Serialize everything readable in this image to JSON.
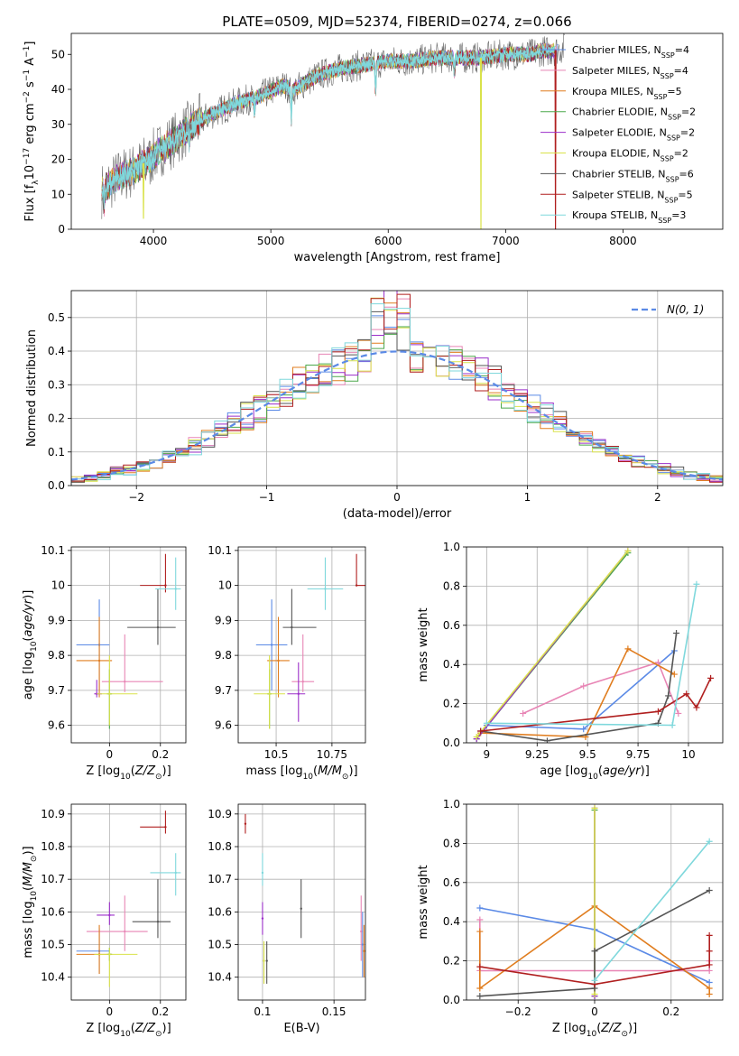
{
  "title": "PLATE=0509, MJD=52374, FIBERID=0274, z=0.066",
  "colors": {
    "chabrier_miles": "#5b8ae6",
    "salpeter_miles": "#e885b5",
    "kroupa_miles": "#e07d1f",
    "chabrier_elodie": "#4ca84c",
    "salpeter_elodie": "#9b2fc9",
    "kroupa_elodie": "#d9e24a",
    "chabrier_stelib": "#555555",
    "salpeter_stelib": "#b01f1f",
    "kroupa_stelib": "#7fd8dc",
    "spectrum": "#666666",
    "gaussian": "#5b8ae6"
  },
  "chart_data": [
    {
      "id": "spectrum",
      "type": "line",
      "xlabel": "wavelength [Angstrom, rest frame]",
      "ylabel": "Flux [f_λ 10^-17 erg cm^-2 s^-1 A^-1]",
      "xlim": [
        3300,
        8850
      ],
      "ylim": [
        0,
        56
      ],
      "xticks": [
        4000,
        5000,
        6000,
        7000,
        8000
      ],
      "yticks": [
        0,
        10,
        20,
        30,
        40,
        50
      ],
      "grid": false,
      "legend_position": "right",
      "legend": [
        {
          "label": "Chabrier MILES, N",
          "sub": "SSP",
          "eq": "=4",
          "color_key": "chabrier_miles"
        },
        {
          "label": "Salpeter MILES, N",
          "sub": "SSP",
          "eq": "=4",
          "color_key": "salpeter_miles"
        },
        {
          "label": "Kroupa MILES, N",
          "sub": "SSP",
          "eq": "=5",
          "color_key": "kroupa_miles"
        },
        {
          "label": "Chabrier ELODIE, N",
          "sub": "SSP",
          "eq": "=2",
          "color_key": "chabrier_elodie"
        },
        {
          "label": "Salpeter ELODIE, N",
          "sub": "SSP",
          "eq": "=2",
          "color_key": "salpeter_elodie"
        },
        {
          "label": "Kroupa ELODIE, N",
          "sub": "SSP",
          "eq": "=2",
          "color_key": "kroupa_elodie"
        },
        {
          "label": "Chabrier STELIB, N",
          "sub": "SSP",
          "eq": "=6",
          "color_key": "chabrier_stelib"
        },
        {
          "label": "Salpeter STELIB, N",
          "sub": "SSP",
          "eq": "=5",
          "color_key": "salpeter_stelib"
        },
        {
          "label": "Kroupa STELIB, N",
          "sub": "SSP",
          "eq": "=3",
          "color_key": "kroupa_stelib"
        }
      ],
      "continuum_x": [
        3560,
        3700,
        3850,
        3920,
        4000,
        4100,
        4200,
        4300,
        4400,
        4500,
        4700,
        4900,
        5100,
        5200,
        5400,
        5600,
        5800,
        6000,
        6200,
        6400,
        6600,
        6800,
        7000,
        7200,
        7300,
        7400,
        7500
      ],
      "continuum_y": [
        11,
        15,
        17,
        19,
        21,
        24,
        26,
        29,
        31,
        33,
        36,
        38,
        41,
        40,
        44,
        46,
        47,
        48,
        48,
        49,
        49,
        49,
        50,
        50,
        51,
        51,
        52
      ],
      "features": [
        {
          "x": 3580,
          "y": 7
        },
        {
          "x": 3934,
          "y": 18
        },
        {
          "x": 3968,
          "y": 19
        },
        {
          "x": 4101,
          "y": 22
        },
        {
          "x": 4304,
          "y": 25
        },
        {
          "x": 4861,
          "y": 33
        },
        {
          "x": 5175,
          "y": 32
        },
        {
          "x": 5893,
          "y": 39
        },
        {
          "x": 6563,
          "y": 45
        }
      ],
      "spikes": [
        {
          "x": 3915,
          "y": 3,
          "color_key": "kroupa_elodie"
        },
        {
          "x": 6790,
          "y": 0,
          "color_key": "kroupa_elodie"
        },
        {
          "x": 7425,
          "y": 0,
          "color_key": "salpeter_stelib"
        }
      ]
    },
    {
      "id": "residual-histogram",
      "type": "area",
      "xlabel": "(data-model)/error",
      "ylabel": "Normed distribution",
      "xlim": [
        -2.5,
        2.5
      ],
      "ylim": [
        0,
        0.58
      ],
      "xticks": [
        -2,
        -1,
        0,
        1,
        2
      ],
      "yticks": [
        0.0,
        0.1,
        0.2,
        0.3,
        0.4,
        0.5
      ],
      "grid": true,
      "bin_width": 0.1,
      "gaussian_label": "N(0,1)",
      "legend_position": "top-right"
    },
    {
      "id": "age-vs-Z",
      "type": "scatter",
      "xlabel": "Z [log10(Z/Zsun)]",
      "ylabel": "age [log10(age/yr)]",
      "xlim": [
        -0.15,
        0.3
      ],
      "ylim": [
        9.55,
        10.11
      ],
      "xticks": [
        0.0,
        0.2
      ],
      "yticks": [
        9.6,
        9.7,
        9.8,
        9.9,
        10.0,
        10.1
      ],
      "grid": true,
      "points": [
        {
          "color_key": "chabrier_miles",
          "x": -0.04,
          "xerr": [
            0.09,
            0.04
          ],
          "y": 9.83,
          "yerr": [
            0.13,
            0.13
          ]
        },
        {
          "color_key": "salpeter_miles",
          "x": 0.06,
          "xerr": [
            0.09,
            0.15
          ],
          "y": 9.725,
          "yerr": [
            0.03,
            0.135
          ]
        },
        {
          "color_key": "kroupa_miles",
          "x": -0.04,
          "xerr": [
            0.09,
            0.05
          ],
          "y": 9.785,
          "yerr": [
            0.105,
            0.125
          ]
        },
        {
          "color_key": "chabrier_elodie",
          "x": 0.0,
          "xerr": [
            0.01,
            0.01
          ],
          "y": 9.69,
          "yerr": [
            0.1,
            0.07
          ]
        },
        {
          "color_key": "salpeter_elodie",
          "x": -0.05,
          "xerr": [
            0.01,
            0.02
          ],
          "y": 9.69,
          "yerr": [
            0.01,
            0.04
          ]
        },
        {
          "color_key": "kroupa_elodie",
          "x": 0.0,
          "xerr": [
            0.05,
            0.11
          ],
          "y": 9.69,
          "yerr": [
            0.09,
            0.11
          ]
        },
        {
          "color_key": "chabrier_stelib",
          "x": 0.19,
          "xerr": [
            0.12,
            0.07
          ],
          "y": 9.88,
          "yerr": [
            0.05,
            0.11
          ]
        },
        {
          "color_key": "salpeter_stelib",
          "x": 0.22,
          "xerr": [
            0.1,
            0.0
          ],
          "y": 10.0,
          "yerr": [
            0.02,
            0.09
          ]
        },
        {
          "color_key": "kroupa_stelib",
          "x": 0.26,
          "xerr": [
            0.08,
            0.02
          ],
          "y": 9.99,
          "yerr": [
            0.06,
            0.09
          ]
        }
      ]
    },
    {
      "id": "age-vs-mass",
      "type": "scatter",
      "xlabel": "mass [log10(M/Msun)]",
      "ylabel": "",
      "xlim": [
        10.33,
        10.9
      ],
      "ylim": [
        9.55,
        10.11
      ],
      "xticks": [
        10.5,
        10.75
      ],
      "yticks": [
        9.6,
        9.7,
        9.8,
        9.9,
        10.0,
        10.1
      ],
      "grid": true,
      "points": [
        {
          "color_key": "chabrier_miles",
          "x": 10.48,
          "xerr": [
            0.07,
            0.07
          ],
          "y": 9.83,
          "yerr": [
            0.13,
            0.13
          ]
        },
        {
          "color_key": "salpeter_miles",
          "x": 10.62,
          "xerr": [
            0.05,
            0.05
          ],
          "y": 9.725,
          "yerr": [
            0.03,
            0.135
          ]
        },
        {
          "color_key": "kroupa_miles",
          "x": 10.51,
          "xerr": [
            0.05,
            0.05
          ],
          "y": 9.785,
          "yerr": [
            0.105,
            0.125
          ]
        },
        {
          "color_key": "chabrier_elodie",
          "x": 10.47,
          "xerr": [
            0.01,
            0.01
          ],
          "y": 9.69,
          "yerr": [
            0.1,
            0.07
          ]
        },
        {
          "color_key": "salpeter_elodie",
          "x": 10.6,
          "xerr": [
            0.05,
            0.03
          ],
          "y": 9.69,
          "yerr": [
            0.08,
            0.09
          ]
        },
        {
          "color_key": "kroupa_elodie",
          "x": 10.47,
          "xerr": [
            0.07,
            0.07
          ],
          "y": 9.69,
          "yerr": [
            0.1,
            0.11
          ]
        },
        {
          "color_key": "chabrier_stelib",
          "x": 10.57,
          "xerr": [
            0.04,
            0.11
          ],
          "y": 9.88,
          "yerr": [
            0.05,
            0.11
          ]
        },
        {
          "color_key": "salpeter_stelib",
          "x": 10.86,
          "xerr": [
            0.0,
            0.04
          ],
          "y": 10.0,
          "yerr": [
            0.0,
            0.09
          ]
        },
        {
          "color_key": "kroupa_stelib",
          "x": 10.72,
          "xerr": [
            0.08,
            0.08
          ],
          "y": 9.99,
          "yerr": [
            0.06,
            0.09
          ]
        }
      ]
    },
    {
      "id": "weight-vs-age",
      "type": "line",
      "xlabel": "age [log10(age/yr)]",
      "ylabel": "mass weight",
      "xlim": [
        8.9,
        10.17
      ],
      "ylim": [
        0,
        1.0
      ],
      "xticks": [
        9.0,
        9.25,
        9.5,
        9.75,
        10.0
      ],
      "yticks": [
        0.0,
        0.2,
        0.4,
        0.6,
        0.8,
        1.0
      ],
      "grid": true,
      "series": [
        {
          "color_key": "chabrier_miles",
          "x": [
            9.0,
            9.48,
            9.93
          ],
          "y": [
            0.09,
            0.07,
            0.47
          ]
        },
        {
          "color_key": "salpeter_miles",
          "x": [
            9.18,
            9.48,
            9.85,
            9.95
          ],
          "y": [
            0.15,
            0.29,
            0.41,
            0.15
          ]
        },
        {
          "color_key": "kroupa_miles",
          "x": [
            8.97,
            9.49,
            9.7,
            9.93
          ],
          "y": [
            0.05,
            0.03,
            0.48,
            0.35
          ]
        },
        {
          "color_key": "chabrier_elodie",
          "x": [
            8.95,
            9.7
          ],
          "y": [
            0.02,
            0.97
          ]
        },
        {
          "color_key": "salpeter_elodie",
          "x": [
            8.95,
            9.7
          ],
          "y": [
            0.02,
            0.98
          ]
        },
        {
          "color_key": "kroupa_elodie",
          "x": [
            8.95,
            9.7
          ],
          "y": [
            0.03,
            0.98
          ]
        },
        {
          "color_key": "chabrier_stelib",
          "x": [
            8.97,
            9.3,
            9.85,
            9.9,
            9.94
          ],
          "y": [
            0.06,
            0.01,
            0.1,
            0.24,
            0.56
          ]
        },
        {
          "color_key": "salpeter_stelib",
          "x": [
            8.97,
            9.85,
            9.99,
            10.04,
            10.11
          ],
          "y": [
            0.06,
            0.16,
            0.25,
            0.18,
            0.33
          ]
        },
        {
          "color_key": "kroupa_stelib",
          "x": [
            9.0,
            9.92,
            10.04
          ],
          "y": [
            0.1,
            0.09,
            0.81
          ]
        }
      ]
    },
    {
      "id": "mass-vs-Z",
      "type": "scatter",
      "xlabel": "Z [log10(Z/Zsun)]",
      "ylabel": "mass [log10(M/Msun)]",
      "xlim": [
        -0.15,
        0.3
      ],
      "ylim": [
        10.33,
        10.93
      ],
      "xticks": [
        0.0,
        0.2
      ],
      "yticks": [
        10.4,
        10.5,
        10.6,
        10.7,
        10.8,
        10.9
      ],
      "grid": true,
      "points": [
        {
          "color_key": "chabrier_miles",
          "x": -0.04,
          "xerr": [
            0.09,
            0.04
          ],
          "y": 10.48,
          "yerr": [
            0.07,
            0.07
          ]
        },
        {
          "color_key": "salpeter_miles",
          "x": 0.06,
          "xerr": [
            0.15,
            0.09
          ],
          "y": 10.54,
          "yerr": [
            0.06,
            0.11
          ]
        },
        {
          "color_key": "kroupa_miles",
          "x": -0.04,
          "xerr": [
            0.09,
            0.05
          ],
          "y": 10.47,
          "yerr": [
            0.06,
            0.09
          ]
        },
        {
          "color_key": "chabrier_elodie",
          "x": 0.0,
          "xerr": [
            0.01,
            0.01
          ],
          "y": 10.47,
          "yerr": [
            0.02,
            0.02
          ]
        },
        {
          "color_key": "salpeter_elodie",
          "x": 0.0,
          "xerr": [
            0.05,
            0.02
          ],
          "y": 10.59,
          "yerr": [
            0.03,
            0.04
          ]
        },
        {
          "color_key": "kroupa_elodie",
          "x": 0.0,
          "xerr": [
            0.06,
            0.11
          ],
          "y": 10.47,
          "yerr": [
            0.1,
            0.02
          ]
        },
        {
          "color_key": "chabrier_stelib",
          "x": 0.19,
          "xerr": [
            0.1,
            0.05
          ],
          "y": 10.57,
          "yerr": [
            0.05,
            0.13
          ]
        },
        {
          "color_key": "salpeter_stelib",
          "x": 0.22,
          "xerr": [
            0.1,
            0.0
          ],
          "y": 10.86,
          "yerr": [
            0.02,
            0.05
          ]
        },
        {
          "color_key": "kroupa_stelib",
          "x": 0.26,
          "xerr": [
            0.1,
            0.02
          ],
          "y": 10.72,
          "yerr": [
            0.07,
            0.06
          ]
        }
      ]
    },
    {
      "id": "mass-vs-EBV",
      "type": "scatter",
      "xlabel": "E(B-V)",
      "ylabel": "",
      "xlim": [
        0.083,
        0.172
      ],
      "ylim": [
        10.33,
        10.93
      ],
      "xticks": [
        0.1,
        0.15
      ],
      "yticks": [
        10.4,
        10.5,
        10.6,
        10.7,
        10.8,
        10.9
      ],
      "grid": true,
      "points": [
        {
          "color_key": "salpeter_stelib",
          "x": 0.088,
          "y": 10.87,
          "yerr": [
            0.03,
            0.03
          ]
        },
        {
          "color_key": "kroupa_stelib",
          "x": 0.1,
          "y": 10.72,
          "yerr": [
            0.04,
            0.06
          ]
        },
        {
          "color_key": "salpeter_elodie",
          "x": 0.1,
          "y": 10.58,
          "yerr": [
            0.05,
            0.05
          ]
        },
        {
          "color_key": "kroupa_elodie",
          "x": 0.101,
          "y": 10.45,
          "yerr": [
            0.07,
            0.06
          ]
        },
        {
          "color_key": "chabrier_stelib",
          "x": 0.103,
          "y": 10.45,
          "yerr": [
            0.07,
            0.06
          ]
        },
        {
          "color_key": "chabrier_stelib",
          "x": 0.127,
          "y": 10.61,
          "yerr": [
            0.09,
            0.09
          ]
        },
        {
          "color_key": "salpeter_miles",
          "x": 0.169,
          "y": 10.54,
          "yerr": [
            0.09,
            0.11
          ]
        },
        {
          "color_key": "chabrier_miles",
          "x": 0.17,
          "y": 10.5,
          "yerr": [
            0.1,
            0.1
          ]
        },
        {
          "color_key": "kroupa_miles",
          "x": 0.171,
          "y": 10.48,
          "yerr": [
            0.08,
            0.08
          ]
        }
      ]
    },
    {
      "id": "weight-vs-Z",
      "type": "line",
      "xlabel": "Z [log10(Z/Zsun)]",
      "ylabel": "mass weight",
      "xlim": [
        -0.335,
        0.335
      ],
      "ylim": [
        0,
        1.0
      ],
      "xticks": [
        -0.2,
        0.0,
        0.2
      ],
      "yticks": [
        0.0,
        0.2,
        0.4,
        0.6,
        0.8,
        1.0
      ],
      "grid": true,
      "series": [
        {
          "color_key": "chabrier_miles",
          "x": [
            -0.3,
            0.0,
            0.3
          ],
          "y": [
            0.47,
            0.36,
            0.09
          ]
        },
        {
          "color_key": "salpeter_miles",
          "x": [
            -0.3,
            -0.3,
            0.3,
            0.3
          ],
          "y": [
            0.41,
            0.15,
            0.15,
            0.2
          ]
        },
        {
          "color_key": "kroupa_miles",
          "x": [
            -0.3,
            -0.3,
            0.0,
            0.3,
            0.3
          ],
          "y": [
            0.35,
            0.06,
            0.48,
            0.06,
            0.03
          ]
        },
        {
          "color_key": "chabrier_elodie",
          "x": [
            0.0,
            0.0
          ],
          "y": [
            0.02,
            0.97
          ]
        },
        {
          "color_key": "salpeter_elodie",
          "x": [
            0.0,
            0.0
          ],
          "y": [
            0.02,
            0.98
          ]
        },
        {
          "color_key": "kroupa_elodie",
          "x": [
            0.0,
            0.0
          ],
          "y": [
            0.03,
            0.98
          ]
        },
        {
          "color_key": "chabrier_stelib",
          "x": [
            -0.3,
            0.0,
            0.0,
            0.3
          ],
          "y": [
            0.02,
            0.06,
            0.25,
            0.56
          ]
        },
        {
          "color_key": "salpeter_stelib",
          "x": [
            -0.3,
            0.0,
            0.3,
            0.3,
            0.3
          ],
          "y": [
            0.17,
            0.08,
            0.18,
            0.25,
            0.33
          ]
        },
        {
          "color_key": "kroupa_stelib",
          "x": [
            0.0,
            0.3
          ],
          "y": [
            0.1,
            0.81
          ]
        }
      ]
    }
  ]
}
